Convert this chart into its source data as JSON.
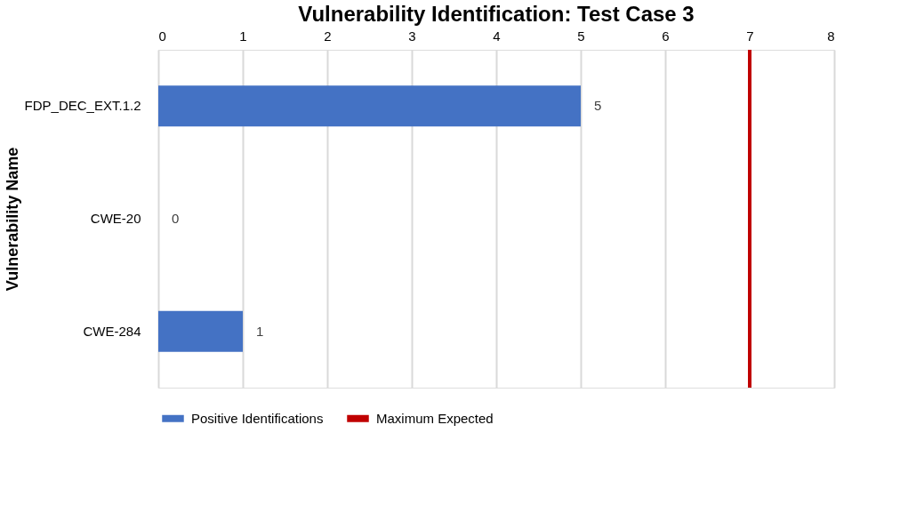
{
  "chart_data": {
    "type": "bar",
    "orientation": "horizontal",
    "title": "Vulnerability Identification: Test Case 3",
    "ylabel": "Vulnerability Name",
    "categories": [
      "FDP_DEC_EXT.1.2",
      "CWE-20",
      "CWE-284"
    ],
    "series": [
      {
        "name": "Positive Identifications",
        "color": "#4472c4",
        "values": [
          5,
          0,
          1
        ]
      }
    ],
    "xlim": [
      0,
      8
    ],
    "xticks": [
      0,
      1,
      2,
      3,
      4,
      5,
      6,
      7,
      8
    ],
    "grid": "x",
    "data_labels": true,
    "legend": "bottom",
    "ref_lines": [
      {
        "axis": "x",
        "value": 7,
        "label": "Maximum Expected",
        "color": "#c00000"
      }
    ]
  }
}
